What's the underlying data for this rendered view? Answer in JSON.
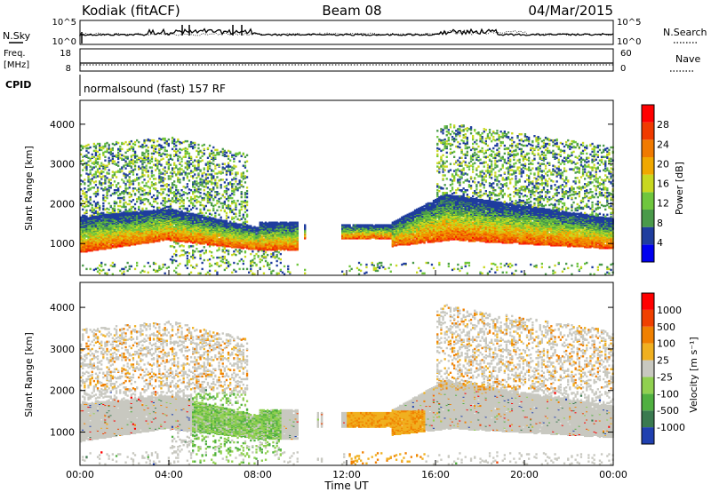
{
  "header": {
    "site": "Kodiak (fitACF)",
    "beam": "Beam 08",
    "date": "04/Mar/2015"
  },
  "top_panels": {
    "nsky_label": "N.Sky",
    "nsky_ticks": [
      "10^5",
      "10^0"
    ],
    "nsearch_label": "N.Search",
    "nsearch_ticks": [
      "10^5",
      "10^0"
    ],
    "freq_label": "Freq.",
    "freq_unit": "[MHz]",
    "freq_ticks": [
      "18",
      "8"
    ],
    "nave_label": "Nave",
    "nave_ticks": [
      "60",
      "0"
    ],
    "cpid_label": "CPID",
    "cpid_text": "normalsound (fast) 157 RF"
  },
  "chart_data": [
    {
      "type": "heatmap",
      "name": "power",
      "ylabel": "Slant Range [km]",
      "xlabel": "",
      "ylim": [
        200,
        4600
      ],
      "yticks": [
        1000,
        2000,
        3000,
        4000
      ],
      "xlim": [
        0,
        24
      ],
      "colorbar": {
        "label": "Power [dB]",
        "ticks": [
          "4",
          "8",
          "12",
          "16",
          "20",
          "24",
          "28"
        ],
        "colors": [
          "#0000f0",
          "#1f3d9e",
          "#4a9a4a",
          "#6fc63d",
          "#c8d820",
          "#f0a800",
          "#f07a00",
          "#f03a00",
          "#ff0000"
        ]
      }
    },
    {
      "type": "heatmap",
      "name": "velocity",
      "ylabel": "Slant Range [km]",
      "xlabel": "Time UT",
      "ylim": [
        200,
        4600
      ],
      "yticks": [
        1000,
        2000,
        3000,
        4000
      ],
      "xlim": [
        0,
        24
      ],
      "xticks": [
        "00:00",
        "04:00",
        "08:00",
        "12:00",
        "16:00",
        "20:00",
        "00:00"
      ],
      "colorbar": {
        "label": "Velocity [m s⁻¹]",
        "ticks": [
          "1000",
          "500",
          "100",
          "25",
          "-25",
          "-100",
          "-500",
          "-1000"
        ],
        "colors": [
          "#2040b0",
          "#3a7a50",
          "#50b040",
          "#90d050",
          "#c8c8c0",
          "#f0b020",
          "#f08000",
          "#f04000",
          "#ff0000"
        ]
      }
    }
  ]
}
